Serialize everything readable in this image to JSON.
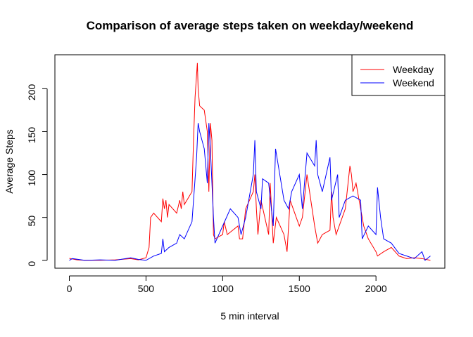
{
  "chart_data": {
    "type": "line",
    "title": "Comparison of average steps taken on weekday/weekend",
    "x_label": "5 min interval",
    "y_label": "Average Steps",
    "xlim": [
      -94.2,
      2449.2
    ],
    "xticks": [
      0,
      500,
      1000,
      1500,
      2000
    ],
    "ylim": [
      -9.2,
      239.6
    ],
    "yticks": [
      0,
      50,
      100,
      150,
      200
    ],
    "legend": "topright",
    "series": [
      {
        "name": "Weekday",
        "color": "#ff0000",
        "x": [
          0,
          50,
          100,
          200,
          300,
          400,
          450,
          500,
          520,
          530,
          550,
          600,
          610,
          620,
          630,
          640,
          650,
          700,
          720,
          730,
          740,
          750,
          800,
          810,
          820,
          835,
          840,
          850,
          880,
          900,
          910,
          920,
          930,
          940,
          950,
          1000,
          1010,
          1030,
          1100,
          1110,
          1130,
          1150,
          1200,
          1210,
          1220,
          1230,
          1250,
          1300,
          1310,
          1330,
          1350,
          1400,
          1420,
          1440,
          1500,
          1520,
          1550,
          1600,
          1620,
          1650,
          1700,
          1710,
          1720,
          1740,
          1800,
          1830,
          1840,
          1850,
          1870,
          1900,
          1920,
          1950,
          2000,
          2010,
          2050,
          2100,
          2150,
          2200,
          2250,
          2300,
          2355
        ],
        "values": [
          2.3,
          0.5,
          0,
          0,
          0.5,
          2,
          0.5,
          3,
          15,
          50,
          55,
          45,
          72,
          60,
          70,
          50,
          65,
          55,
          70,
          60,
          80,
          65,
          80,
          140,
          190,
          230,
          200,
          180,
          175,
          150,
          80,
          160,
          140,
          30,
          25,
          30,
          45,
          30,
          40,
          25,
          25,
          60,
          80,
          100,
          60,
          30,
          70,
          30,
          90,
          20,
          50,
          30,
          10,
          70,
          40,
          50,
          100,
          40,
          20,
          30,
          35,
          80,
          50,
          30,
          60,
          110,
          100,
          80,
          90,
          60,
          40,
          25,
          10,
          5,
          10,
          15,
          5,
          2,
          3,
          2,
          0
        ]
      },
      {
        "name": "Weekend",
        "color": "#0000ff",
        "x": [
          0,
          20,
          100,
          200,
          300,
          400,
          450,
          500,
          550,
          600,
          610,
          620,
          650,
          700,
          720,
          750,
          800,
          830,
          840,
          850,
          880,
          900,
          910,
          920,
          940,
          950,
          1000,
          1050,
          1100,
          1120,
          1150,
          1200,
          1210,
          1220,
          1250,
          1260,
          1300,
          1330,
          1345,
          1400,
          1430,
          1450,
          1500,
          1520,
          1550,
          1600,
          1610,
          1620,
          1650,
          1700,
          1710,
          1750,
          1760,
          1800,
          1850,
          1900,
          1910,
          1950,
          2000,
          2010,
          2030,
          2050,
          2100,
          2150,
          2200,
          2250,
          2300,
          2320,
          2355
        ],
        "values": [
          0,
          2,
          0,
          0.5,
          0,
          3,
          1,
          0,
          5,
          8,
          25,
          10,
          15,
          20,
          30,
          25,
          45,
          120,
          160,
          150,
          130,
          90,
          160,
          130,
          50,
          20,
          40,
          60,
          50,
          30,
          50,
          100,
          140,
          80,
          60,
          95,
          90,
          40,
          130,
          70,
          60,
          80,
          100,
          60,
          125,
          110,
          140,
          100,
          80,
          120,
          70,
          100,
          50,
          70,
          75,
          70,
          25,
          40,
          30,
          85,
          50,
          25,
          20,
          8,
          5,
          2,
          10,
          0,
          5
        ]
      }
    ]
  }
}
